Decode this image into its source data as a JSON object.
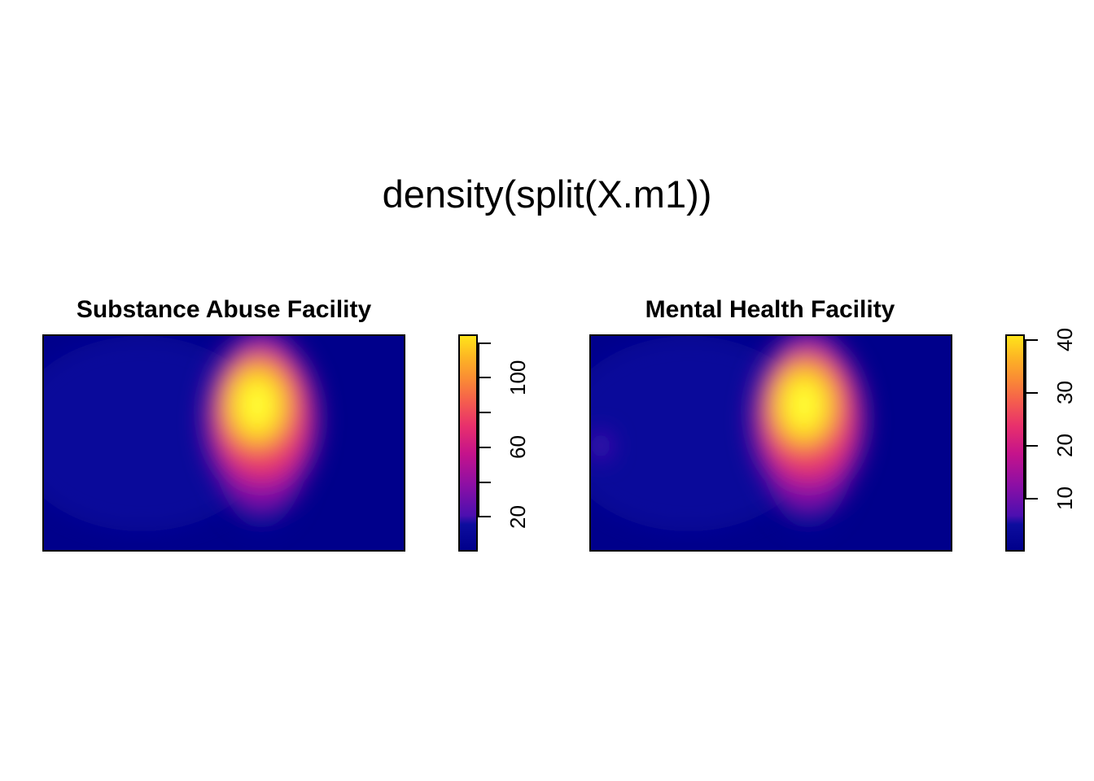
{
  "chart_data": {
    "title": "density(split(X.m1))",
    "type": "heatmap",
    "colormap": [
      "#00008B",
      "#0D0D9E",
      "#4B0FB0",
      "#8B0FA5",
      "#C5138B",
      "#E8306C",
      "#F5604C",
      "#FA8C34",
      "#FDB524",
      "#FFE41A",
      "#FFFF38"
    ],
    "panels": [
      {
        "title": "Substance Abuse Facility",
        "colorbar": {
          "range": [
            0,
            125
          ],
          "ticks": [
            20,
            40,
            60,
            80,
            100,
            120
          ],
          "tick_labels": [
            "20",
            "60",
            "100"
          ]
        },
        "peak_value": 125
      },
      {
        "title": "Mental Health Facility",
        "colorbar": {
          "range": [
            0,
            41
          ],
          "ticks": [
            10,
            20,
            30,
            40
          ],
          "tick_labels": [
            "10",
            "20",
            "30",
            "40"
          ]
        },
        "peak_value": 41
      }
    ]
  }
}
